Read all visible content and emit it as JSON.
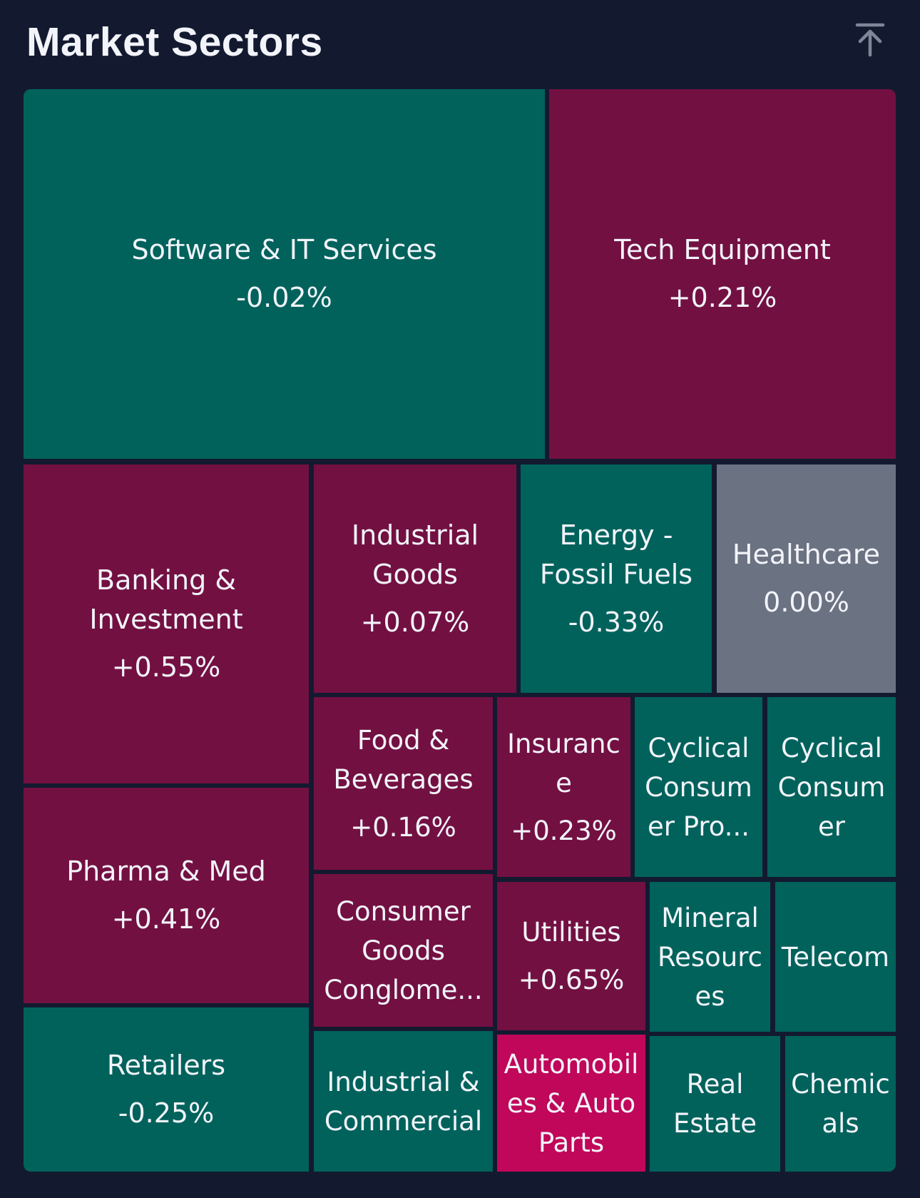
{
  "header": {
    "title": "Market Sectors",
    "collapse_icon": "arrow-up-to-line-icon"
  },
  "colors": {
    "background": "#131a30",
    "positive": "#731042",
    "negative": "#01625c",
    "neutral": "#6b7282",
    "highlight": "#c0075a",
    "text": "#f2f4fa"
  },
  "sectors": [
    {
      "name": "Software & IT Services",
      "change": "-0.02%"
    },
    {
      "name": "Tech Equipment",
      "change": "+0.21%"
    },
    {
      "name": "Banking & Investment",
      "change": "+0.55%"
    },
    {
      "name": "Industrial Goods",
      "change": "+0.07%"
    },
    {
      "name": "Energy - Fossil Fuels",
      "change": "-0.33%"
    },
    {
      "name": "Healthcare",
      "change": "0.00%"
    },
    {
      "name": "Food & Beverages",
      "change": "+0.16%"
    },
    {
      "name": "Insurance",
      "change": "+0.23%"
    },
    {
      "name": "Cyclical Consumer Pro...",
      "change": ""
    },
    {
      "name": "Cyclical Consumer",
      "change": ""
    },
    {
      "name": "Pharma & Med",
      "change": "+0.41%"
    },
    {
      "name": "Consumer Goods Conglome...",
      "change": ""
    },
    {
      "name": "Utilities",
      "change": "+0.65%"
    },
    {
      "name": "Mineral Resources",
      "change": ""
    },
    {
      "name": "Telecom",
      "change": ""
    },
    {
      "name": "Retailers",
      "change": "-0.25%"
    },
    {
      "name": "Industrial & Commercial",
      "change": ""
    },
    {
      "name": "Automobiles & Auto Parts",
      "change": ""
    },
    {
      "name": "Real Estate",
      "change": ""
    },
    {
      "name": "Chemicals",
      "change": ""
    }
  ]
}
